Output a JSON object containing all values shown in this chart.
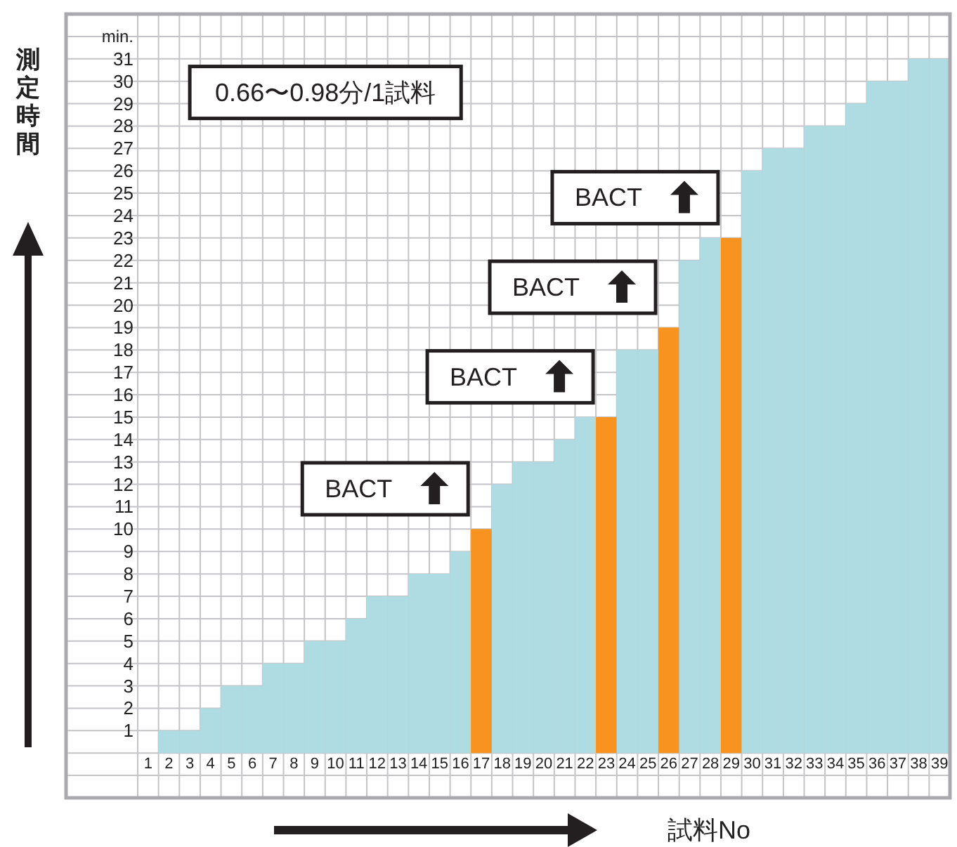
{
  "chart_data": {
    "type": "bar",
    "ylabel": "測定時間",
    "xlabel": "試料No",
    "categories": [
      "1",
      "2",
      "3",
      "4",
      "5",
      "6",
      "7",
      "8",
      "9",
      "10",
      "11",
      "12",
      "13",
      "14",
      "15",
      "16",
      "17",
      "18",
      "19",
      "20",
      "21",
      "22",
      "23",
      "24",
      "25",
      "26",
      "27",
      "28",
      "29",
      "30",
      "31",
      "32",
      "33",
      "34",
      "35",
      "36",
      "37",
      "38",
      "39"
    ],
    "values": [
      0,
      1,
      1,
      2,
      3,
      3,
      4,
      4,
      5,
      5,
      6,
      7,
      7,
      8,
      8,
      9,
      10,
      12,
      13,
      13,
      14,
      15,
      15,
      18,
      18,
      19,
      22,
      23,
      23,
      26,
      27,
      27,
      28,
      28,
      29,
      30,
      30,
      31,
      31
    ],
    "colors": [
      "#aedce2",
      "#aedce2",
      "#aedce2",
      "#aedce2",
      "#aedce2",
      "#aedce2",
      "#aedce2",
      "#aedce2",
      "#aedce2",
      "#aedce2",
      "#aedce2",
      "#aedce2",
      "#aedce2",
      "#aedce2",
      "#aedce2",
      "#aedce2",
      "#f7931e",
      "#aedce2",
      "#aedce2",
      "#aedce2",
      "#aedce2",
      "#aedce2",
      "#f7931e",
      "#aedce2",
      "#aedce2",
      "#f7931e",
      "#aedce2",
      "#aedce2",
      "#f7931e",
      "#aedce2",
      "#aedce2",
      "#aedce2",
      "#aedce2",
      "#aedce2",
      "#aedce2",
      "#aedce2",
      "#aedce2",
      "#aedce2",
      "#aedce2"
    ],
    "ylim": [
      -2,
      33
    ],
    "yticks": [
      1,
      2,
      3,
      4,
      5,
      6,
      7,
      8,
      9,
      10,
      11,
      12,
      13,
      14,
      15,
      16,
      17,
      18,
      19,
      20,
      21,
      22,
      23,
      24,
      25,
      26,
      27,
      28,
      29,
      30,
      31
    ],
    "grid": true,
    "annotations": [
      "min.",
      "0.66〜0.98分/1試料",
      "BACT",
      "BACT",
      "BACT",
      "BACT"
    ]
  }
}
